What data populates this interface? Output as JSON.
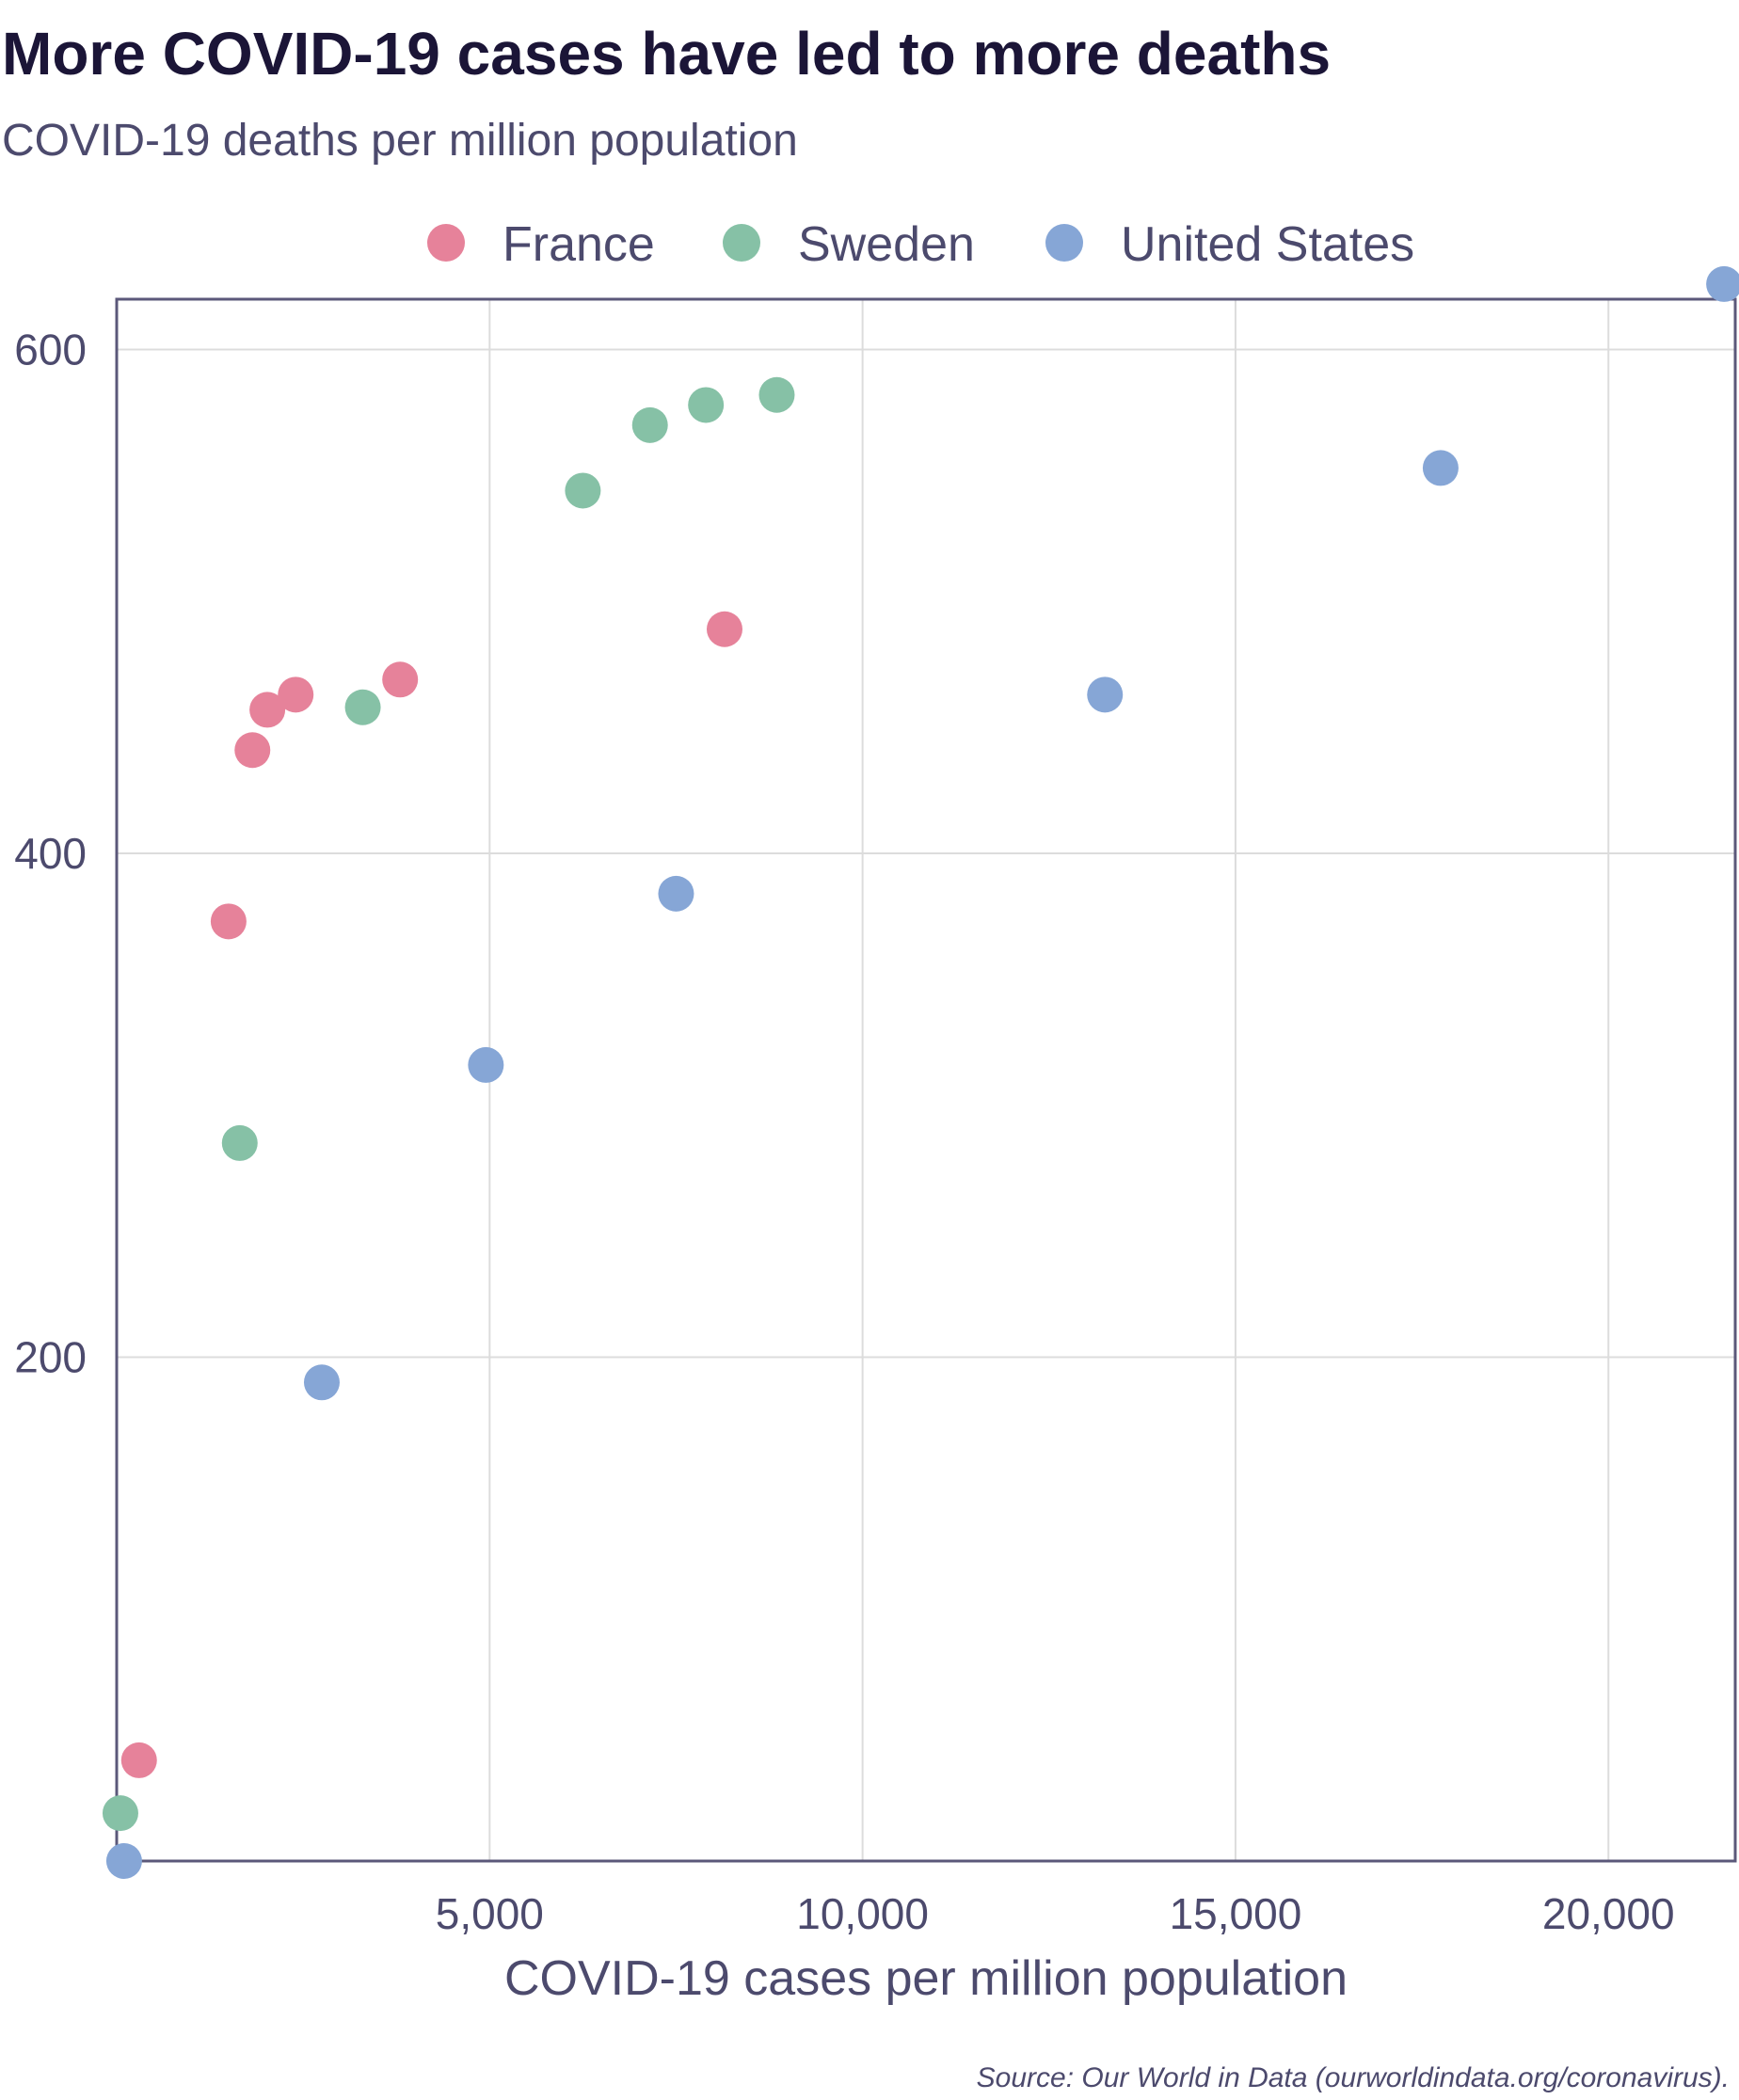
{
  "chart_data": {
    "type": "scatter",
    "title": "More COVID-19 cases have led to more deaths",
    "subtitle": "COVID-19 deaths per million population",
    "xlabel": "COVID-19 cases per million population",
    "ylabel": "",
    "source": "Source: Our World in Data (ourworldindata.org/coronavirus).",
    "xlim": [
      0,
      21700
    ],
    "ylim": [
      0,
      620
    ],
    "x_ticks": [
      5000,
      10000,
      15000,
      20000
    ],
    "x_tick_labels": [
      "5,000",
      "10,000",
      "15,000",
      "20,000"
    ],
    "y_ticks": [
      200,
      400,
      600
    ],
    "y_tick_labels": [
      "200",
      "400",
      "600"
    ],
    "grid": true,
    "legend_position": "top-center",
    "series": [
      {
        "name": "France",
        "color": "#e6829a",
        "points": [
          [
            300,
            40
          ],
          [
            1500,
            373
          ],
          [
            1820,
            441
          ],
          [
            2020,
            457
          ],
          [
            2400,
            463
          ],
          [
            3800,
            469
          ],
          [
            8150,
            489
          ]
        ]
      },
      {
        "name": "Sweden",
        "color": "#86c1a6",
        "points": [
          [
            50,
            19
          ],
          [
            1650,
            285
          ],
          [
            3300,
            458
          ],
          [
            6250,
            544
          ],
          [
            7150,
            570
          ],
          [
            7900,
            578
          ],
          [
            8850,
            582
          ]
        ]
      },
      {
        "name": "United States",
        "color": "#86a6d6",
        "points": [
          [
            100,
            0
          ],
          [
            2750,
            190
          ],
          [
            4950,
            316
          ],
          [
            7500,
            384
          ],
          [
            13250,
            463
          ],
          [
            17750,
            553
          ],
          [
            21550,
            626
          ]
        ]
      }
    ]
  }
}
